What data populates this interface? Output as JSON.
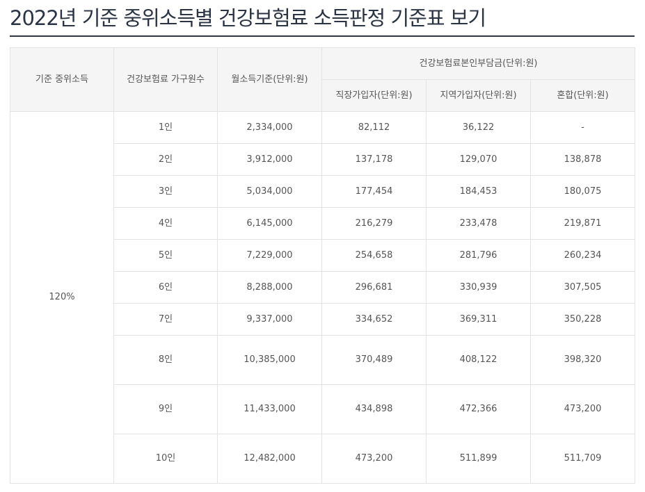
{
  "page": {
    "title": "2022년 기준 중위소득별 건강보험료 소득판정 기준표 보기"
  },
  "table": {
    "headers": {
      "median_income": "기준 중위소득",
      "household_size": "건강보험료 가구원수",
      "monthly_income": "월소득기준(단위:원)",
      "premium_group": "건강보험료본인부담금(단위:원)",
      "employee": "직장가입자(단위:원)",
      "regional": "지역가입자(단위:원)",
      "mixed": "혼합(단위:원)"
    },
    "median_income_value": "120%",
    "rows": [
      {
        "size": "1인",
        "income": "2,334,000",
        "employee": "82,112",
        "regional": "36,122",
        "mixed": "-"
      },
      {
        "size": "2인",
        "income": "3,912,000",
        "employee": "137,178",
        "regional": "129,070",
        "mixed": "138,878"
      },
      {
        "size": "3인",
        "income": "5,034,000",
        "employee": "177,454",
        "regional": "184,453",
        "mixed": "180,075"
      },
      {
        "size": "4인",
        "income": "6,145,000",
        "employee": "216,279",
        "regional": "233,478",
        "mixed": "219,871"
      },
      {
        "size": "5인",
        "income": "7,229,000",
        "employee": "254,658",
        "regional": "281,796",
        "mixed": "260,234"
      },
      {
        "size": "6인",
        "income": "8,288,000",
        "employee": "296,681",
        "regional": "330,939",
        "mixed": "307,505"
      },
      {
        "size": "7인",
        "income": "9,337,000",
        "employee": "334,652",
        "regional": "369,311",
        "mixed": "350,228"
      },
      {
        "size": "8인",
        "income": "10,385,000",
        "employee": "370,489",
        "regional": "408,122",
        "mixed": "398,320"
      },
      {
        "size": "9인",
        "income": "11,433,000",
        "employee": "434,898",
        "regional": "472,366",
        "mixed": "473,200"
      },
      {
        "size": "10인",
        "income": "12,482,000",
        "employee": "473,200",
        "regional": "511,899",
        "mixed": "511,709"
      }
    ]
  }
}
